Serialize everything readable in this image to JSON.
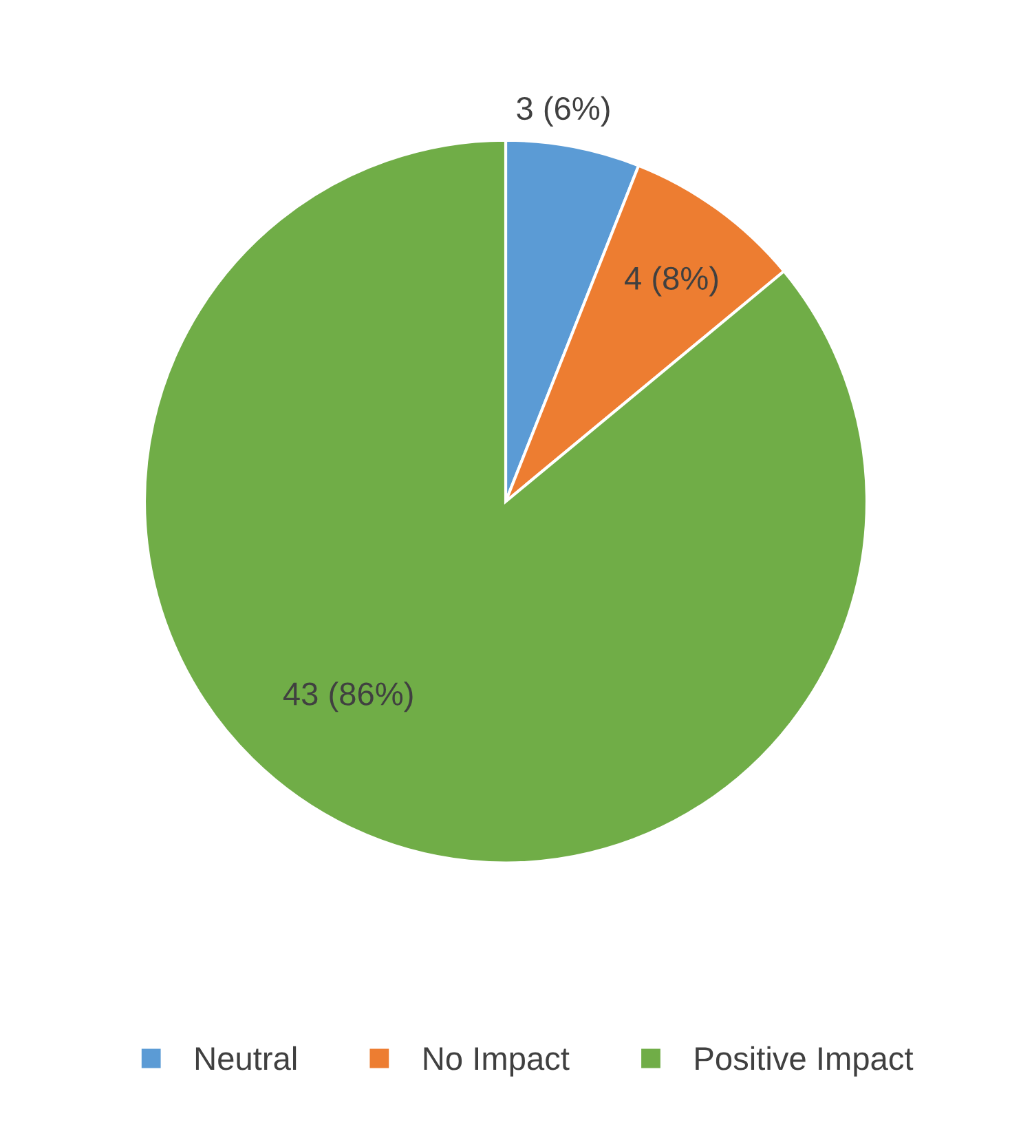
{
  "chart_data": {
    "type": "pie",
    "categories": [
      "Neutral",
      "No Impact",
      "Positive Impact"
    ],
    "values": [
      3,
      4,
      43
    ],
    "colors": [
      "#5b9bd5",
      "#ed7d31",
      "#70ad47"
    ],
    "value_labels": [
      "3 (6%)",
      "4 (8%)",
      "43 (86%)"
    ],
    "legend": "bottom"
  }
}
